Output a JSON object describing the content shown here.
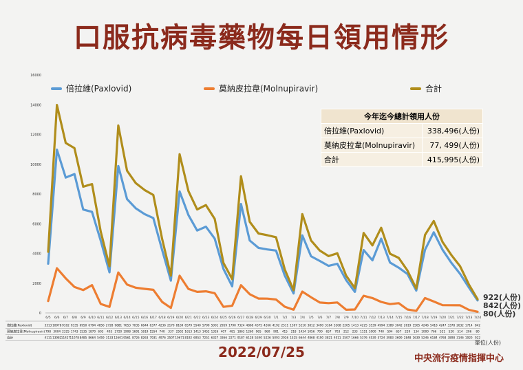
{
  "title": "口服抗病毒藥物每日領用情形",
  "date": "2022/07/25",
  "organization": "中央流行疫情指揮中心",
  "unit_note": "單位(人份)",
  "summary": {
    "header": "今年迄今總計領用人份",
    "rows": [
      {
        "label": "倍拉維(Paxlovid)",
        "value": "338,496(人份)"
      },
      {
        "label": "莫納皮拉韋(Molnupiravir)",
        "value": "77, 499(人份)"
      },
      {
        "label": "合計",
        "value": "415,995(人份)"
      }
    ]
  },
  "end_labels": {
    "total": "922(人份)",
    "paxlovid": "842(人份)",
    "molnupiravir": "80(人份)"
  },
  "chart_data": {
    "type": "line",
    "ylim": [
      0,
      16000
    ],
    "yticks": [
      0,
      2000,
      4000,
      6000,
      8000,
      10000,
      12000,
      14000,
      16000
    ],
    "x": [
      "6/5",
      "6/6",
      "6/7",
      "6/8",
      "6/9",
      "6/10",
      "6/11",
      "6/12",
      "6/13",
      "6/14",
      "6/15",
      "6/16",
      "6/17",
      "6/18",
      "6/19",
      "6/20",
      "6/21",
      "6/22",
      "6/23",
      "6/24",
      "6/25",
      "6/26",
      "6/27",
      "6/28",
      "6/29",
      "6/30",
      "7/1",
      "7/2",
      "7/3",
      "7/4",
      "7/5",
      "7/6",
      "7/7",
      "7/8",
      "7/9",
      "7/10",
      "7/11",
      "7/12",
      "7/13",
      "7/14",
      "7/15",
      "7/16",
      "7/17",
      "7/18",
      "7/19",
      "7/20",
      "7/21",
      "7/22",
      "7/23",
      "7/24"
    ],
    "series": [
      {
        "name": "倍拉維(Paxlovid)",
        "color": "#5b9bd5",
        "table_label": "倍拉維(Paxlovid)",
        "values": [
          3313,
          10978,
          9102,
          9335,
          6950,
          6794,
          4856,
          2728,
          9881,
          7653,
          7035,
          6644,
          6377,
          4236,
          2170,
          8169,
          6579,
          5540,
          5799,
          5001,
          2959,
          1790,
          7324,
          4868,
          4375,
          4266,
          4192,
          2511,
          1307,
          5210,
          3812,
          3490,
          3164,
          3308,
          2205,
          1413,
          4225,
          3539,
          4994,
          3389,
          3042,
          2619,
          1505,
          4246,
          5418,
          4247,
          3378,
          2632,
          1714,
          842
        ]
      },
      {
        "name": "莫納皮拉韋(Molnupiravir)",
        "color": "#ed7d31",
        "table_label": "莫納皮拉韋(Molnupiravir)",
        "values": [
          798,
          3004,
          2325,
          1743,
          1535,
          1870,
          603,
          405,
          2720,
          1908,
          1691,
          1619,
          1554,
          740,
          337,
          2502,
          1613,
          1413,
          1452,
          1326,
          407,
          481,
          1863,
          1260,
          965,
          960,
          901,
          415,
          218,
          1434,
          1056,
          700,
          657,
          703,
          212,
          233,
          1151,
          1000,
          740,
          594,
          657,
          229,
          134,
          1000,
          766,
          521,
          520,
          514,
          206,
          80
        ]
      },
      {
        "name": "合計",
        "color": "#b08d1b",
        "table_label": "合計",
        "values": [
          4111,
          13982,
          11427,
          11078,
          8485,
          8664,
          5459,
          3133,
          12601,
          9561,
          8726,
          8263,
          7931,
          4976,
          2507,
          10671,
          8192,
          6953,
          7251,
          6327,
          3366,
          2271,
          9187,
          6128,
          5340,
          5226,
          5093,
          2926,
          1525,
          6644,
          4868,
          4190,
          3821,
          4011,
          2507,
          1666,
          5376,
          4539,
          5724,
          3983,
          3699,
          2848,
          1639,
          5246,
          6184,
          4768,
          3898,
          3146,
          1920,
          922
        ]
      }
    ]
  }
}
